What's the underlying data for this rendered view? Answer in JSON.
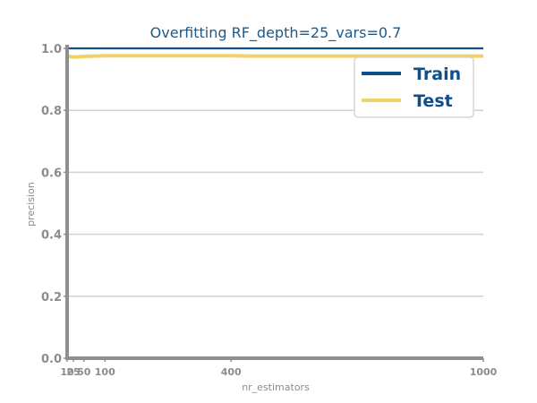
{
  "chart_data": {
    "type": "line",
    "title": "Overfitting RF_depth=25_vars=0.7",
    "xlabel": "nr_estimators",
    "ylabel": "precision",
    "xlim": [
      10,
      1000
    ],
    "ylim": [
      0.0,
      1.0
    ],
    "xticks": [
      10,
      25,
      50,
      100,
      400,
      1000
    ],
    "xtick_labels": [
      "10",
      "25",
      "50",
      "100",
      "400",
      "1000"
    ],
    "yticks": [
      0.0,
      0.2,
      0.4,
      0.6,
      0.8,
      1.0
    ],
    "ytick_labels": [
      "0.0",
      "0.2",
      "0.4",
      "0.6",
      "0.8",
      "1.0"
    ],
    "grid": "y",
    "legend_position": "top-right",
    "x": [
      10,
      25,
      50,
      100,
      150,
      200,
      250,
      300,
      350,
      400,
      450,
      500,
      550,
      600,
      650,
      700,
      750,
      800,
      850,
      900,
      950,
      1000
    ],
    "series": [
      {
        "name": "Train",
        "color": "#0d4f8b",
        "values": [
          1.0,
          1.0,
          1.0,
          1.0,
          1.0,
          1.0,
          1.0,
          1.0,
          1.0,
          1.0,
          1.0,
          1.0,
          1.0,
          1.0,
          1.0,
          1.0,
          1.0,
          1.0,
          1.0,
          1.0,
          1.0,
          1.0
        ]
      },
      {
        "name": "Test",
        "color": "#f0d16a",
        "values": [
          0.975,
          0.972,
          0.974,
          0.976,
          0.976,
          0.976,
          0.976,
          0.976,
          0.976,
          0.976,
          0.975,
          0.975,
          0.975,
          0.975,
          0.975,
          0.975,
          0.975,
          0.975,
          0.975,
          0.975,
          0.975,
          0.975
        ]
      }
    ]
  }
}
